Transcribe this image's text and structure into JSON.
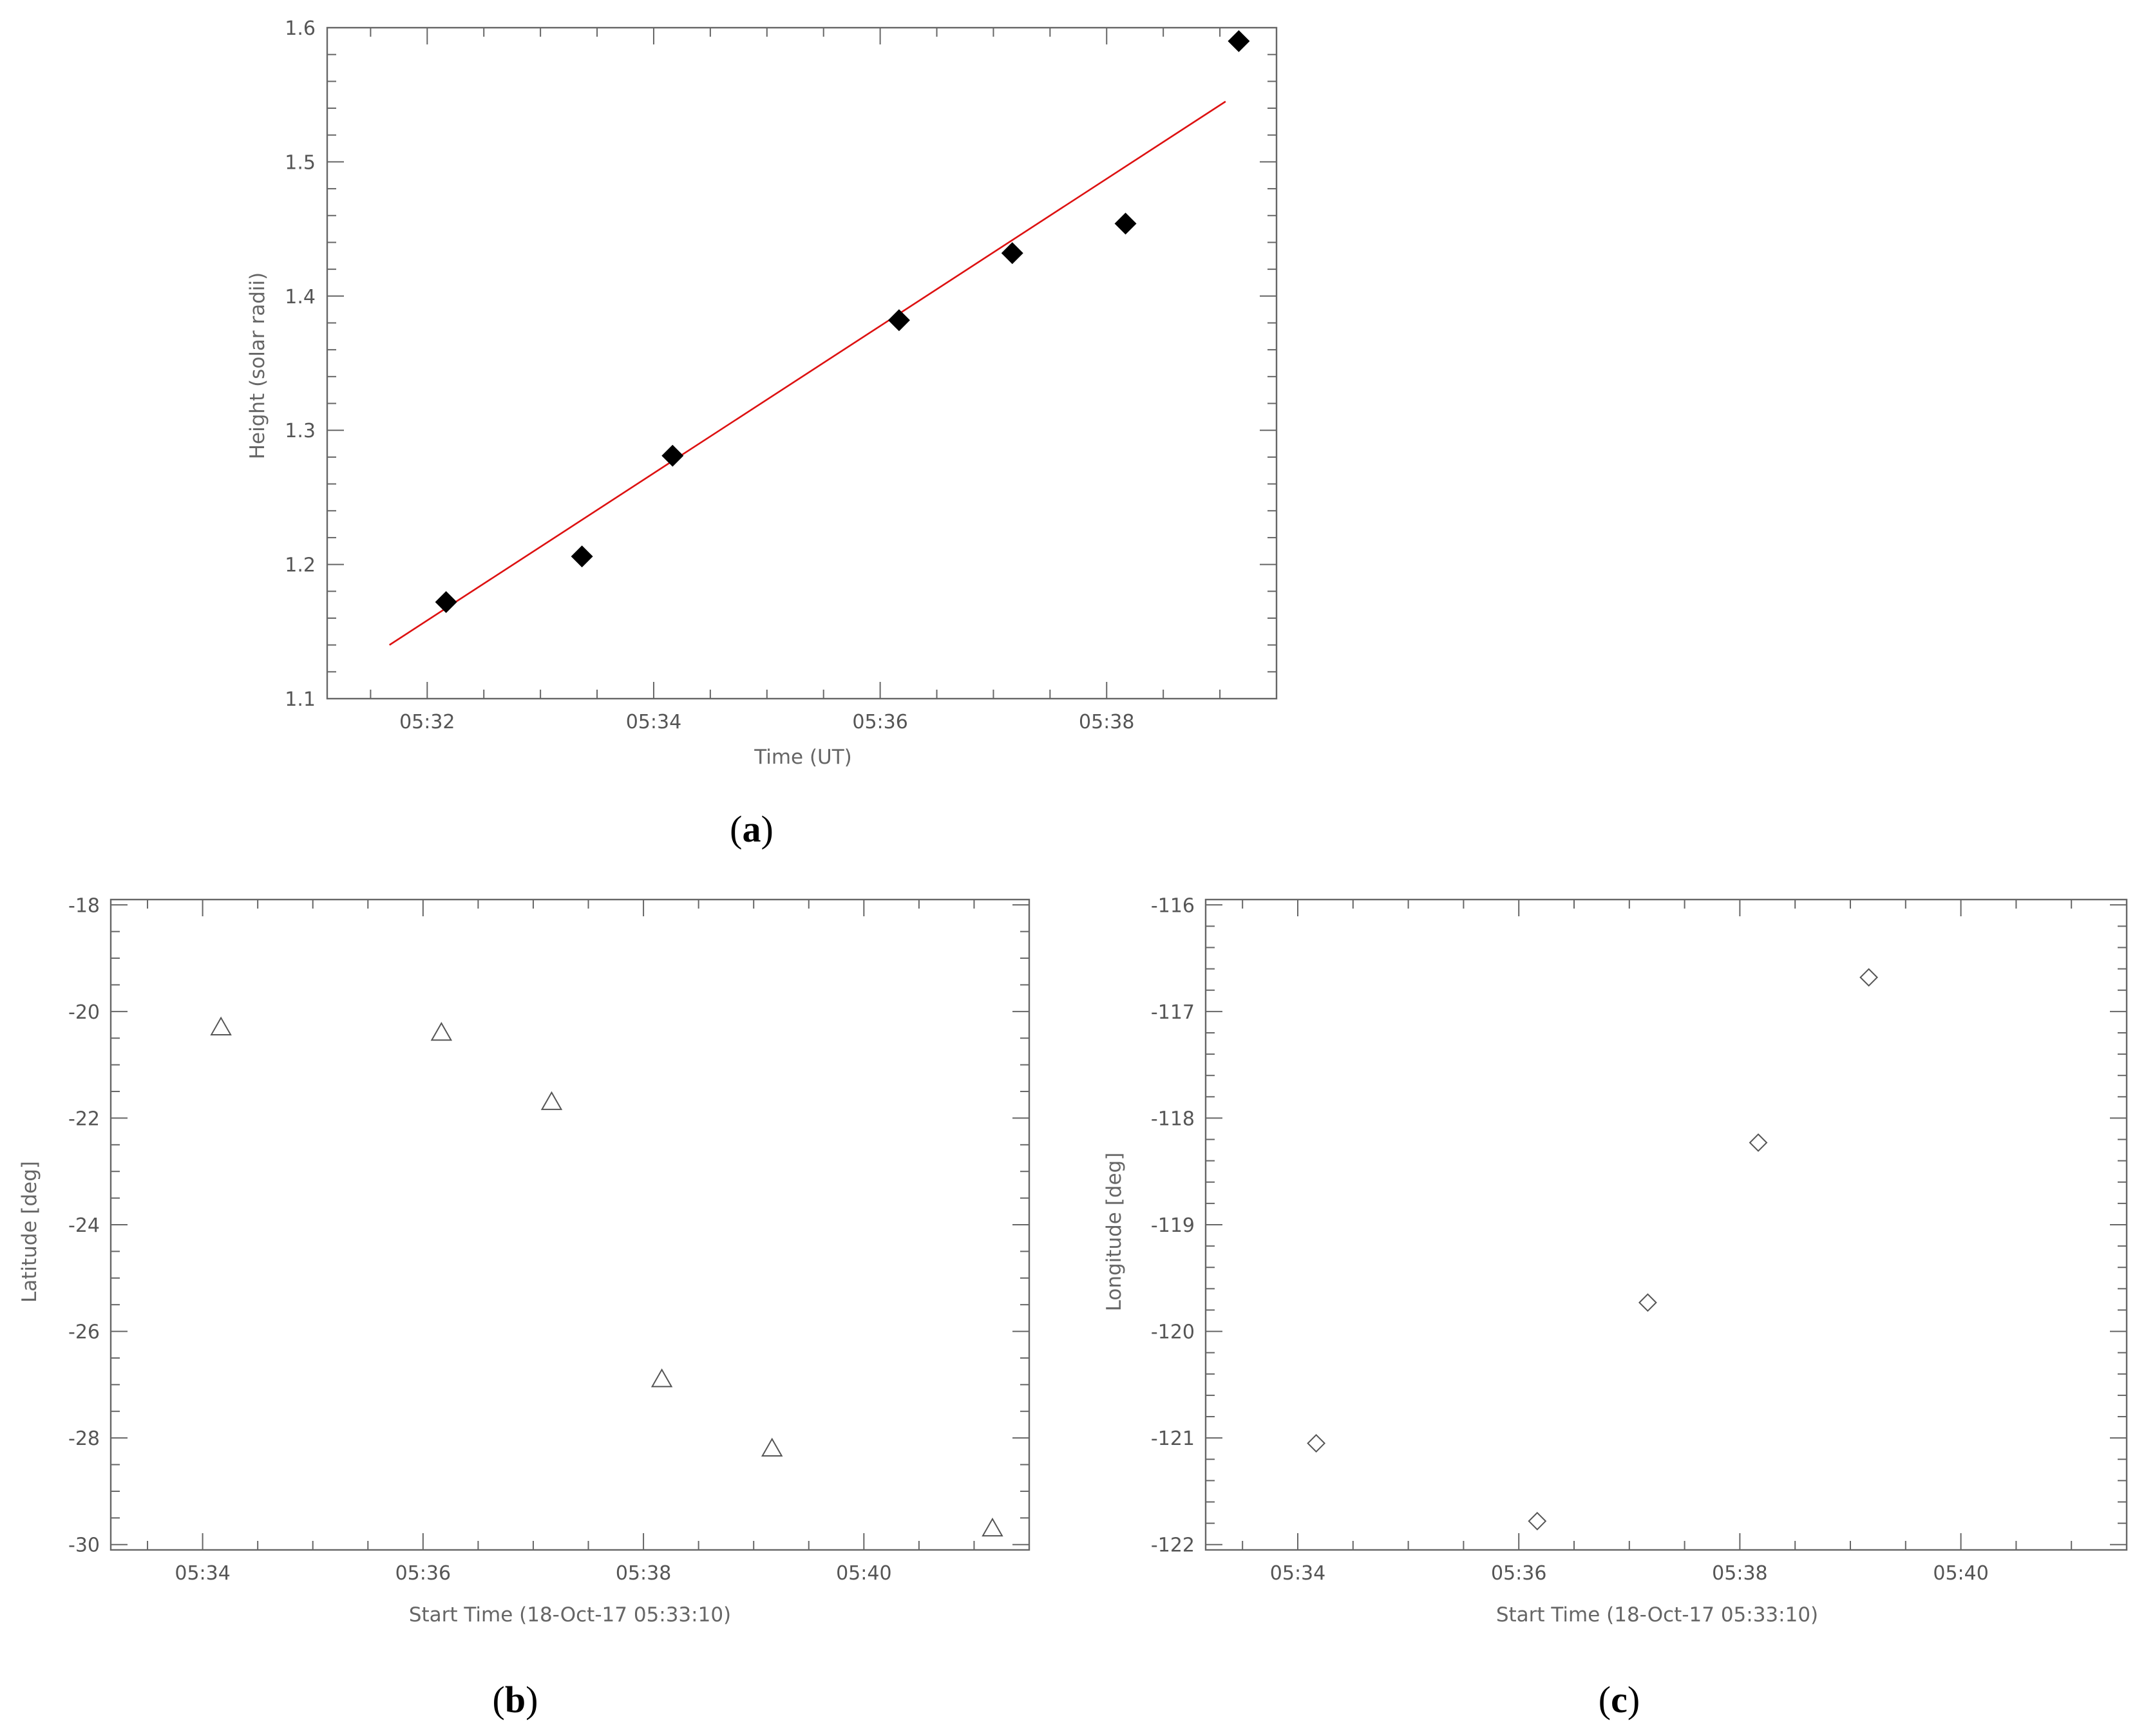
{
  "chart_data": [
    {
      "panel": "a",
      "type": "scatter",
      "xlabel": "Time (UT)",
      "ylabel": "Height (solar radii)",
      "x_ticks": [
        "05:32",
        "05:34",
        "05:36",
        "05:38"
      ],
      "y_ticks": [
        "1.1",
        "1.2",
        "1.3",
        "1.4",
        "1.5",
        "1.6"
      ],
      "xlim": [
        "05:31:07",
        "05:39:30"
      ],
      "ylim": [
        1.1,
        1.6
      ],
      "grid": false,
      "marker": "filled-diamond",
      "marker_color": "#000000",
      "x": [
        "05:32:10",
        "05:33:22",
        "05:34:10",
        "05:36:10",
        "05:37:10",
        "05:38:10",
        "05:39:10"
      ],
      "y": [
        1.172,
        1.206,
        1.281,
        1.382,
        1.432,
        1.454,
        1.59
      ],
      "fit_line": {
        "color": "#dd1111",
        "x": [
          "05:31:40",
          "05:39:03"
        ],
        "y": [
          1.14,
          1.545
        ]
      }
    },
    {
      "panel": "b",
      "type": "scatter",
      "xlabel": "Start Time (18-Oct-17 05:33:10)",
      "ylabel": "Latitude [deg]",
      "x_ticks": [
        "05:34",
        "05:36",
        "05:38",
        "05:40"
      ],
      "y_ticks": [
        "-30",
        "-28",
        "-26",
        "-24",
        "-22",
        "-20",
        "-18"
      ],
      "xlim": [
        "05:33:10",
        "05:41:30"
      ],
      "ylim": [
        -30.1,
        -17.9
      ],
      "grid": false,
      "marker": "open-triangle",
      "marker_color": "#555555",
      "x": [
        "05:34:10",
        "05:36:10",
        "05:37:10",
        "05:38:10",
        "05:39:10",
        "05:41:10"
      ],
      "y": [
        -20.3,
        -20.4,
        -21.7,
        -26.9,
        -28.2,
        -29.7
      ]
    },
    {
      "panel": "c",
      "type": "scatter",
      "xlabel": "Start Time (18-Oct-17 05:33:10)",
      "ylabel": "Longitude [deg]",
      "x_ticks": [
        "05:34",
        "05:36",
        "05:38",
        "05:40"
      ],
      "y_ticks": [
        "-122",
        "-121",
        "-120",
        "-119",
        "-118",
        "-117",
        "-116"
      ],
      "xlim": [
        "05:33:10",
        "05:41:30"
      ],
      "ylim": [
        -122.05,
        -115.95
      ],
      "grid": false,
      "marker": "open-diamond",
      "marker_color": "#555555",
      "x": [
        "05:34:10",
        "05:36:10",
        "05:37:10",
        "05:38:10",
        "05:39:10"
      ],
      "y": [
        -121.05,
        -121.78,
        -119.73,
        -118.23,
        -116.68
      ]
    }
  ]
}
